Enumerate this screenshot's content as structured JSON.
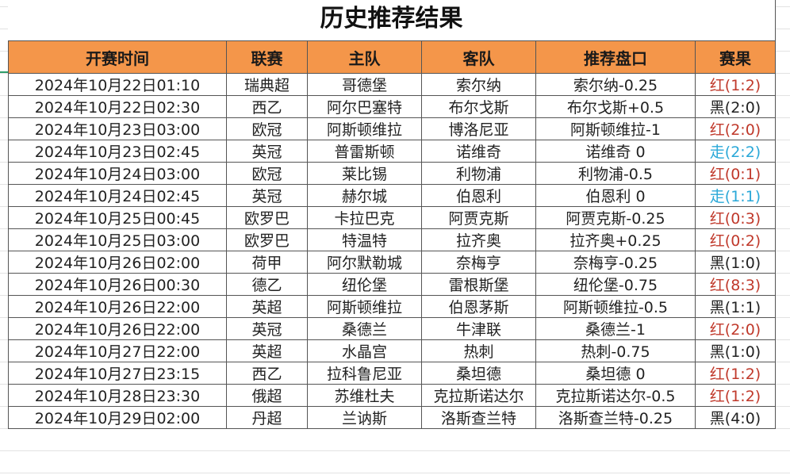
{
  "title": "历史推荐结果",
  "headers": [
    "开赛时间",
    "联赛",
    "主队",
    "客队",
    "推荐盘口",
    "赛果"
  ],
  "colors": {
    "header_bg": "#F4964A",
    "red": "#C0392B",
    "blue": "#2AA8D8",
    "black": "#222222"
  },
  "rows": [
    {
      "time": "2024年10月22日01:10",
      "league": "瑞典超",
      "home": "哥德堡",
      "away": "索尔纳",
      "pick": "索尔纳-0.25",
      "result": "红(1:2)",
      "color": "red"
    },
    {
      "time": "2024年10月22日02:30",
      "league": "西乙",
      "home": "阿尔巴塞特",
      "away": "布尔戈斯",
      "pick": "布尔戈斯+0.5",
      "result": "黑(2:0)",
      "color": "black"
    },
    {
      "time": "2024年10月23日03:00",
      "league": "欧冠",
      "home": "阿斯顿维拉",
      "away": "博洛尼亚",
      "pick": "阿斯顿维拉-1",
      "result": "红(2:0)",
      "color": "red"
    },
    {
      "time": "2024年10月23日02:45",
      "league": "英冠",
      "home": "普雷斯顿",
      "away": "诺维奇",
      "pick": "诺维奇 0",
      "result": "走(2:2)",
      "color": "blue"
    },
    {
      "time": "2024年10月24日03:00",
      "league": "欧冠",
      "home": "莱比锡",
      "away": "利物浦",
      "pick": "利物浦-0.5",
      "result": "红(0:1)",
      "color": "red"
    },
    {
      "time": "2024年10月24日02:45",
      "league": "英冠",
      "home": "赫尔城",
      "away": "伯恩利",
      "pick": "伯恩利 0",
      "result": "走(1:1)",
      "color": "blue"
    },
    {
      "time": "2024年10月25日00:45",
      "league": "欧罗巴",
      "home": "卡拉巴克",
      "away": "阿贾克斯",
      "pick": "阿贾克斯-0.25",
      "result": "红(0:3)",
      "color": "red"
    },
    {
      "time": "2024年10月25日03:00",
      "league": "欧罗巴",
      "home": "特温特",
      "away": "拉齐奥",
      "pick": "拉齐奥+0.25",
      "result": "红(0:2)",
      "color": "red"
    },
    {
      "time": "2024年10月26日02:00",
      "league": "荷甲",
      "home": "阿尔默勒城",
      "away": "奈梅亨",
      "pick": "奈梅亨-0.25",
      "result": "黑(1:0)",
      "color": "black"
    },
    {
      "time": "2024年10月26日00:30",
      "league": "德乙",
      "home": "纽伦堡",
      "away": "雷根斯堡",
      "pick": "纽伦堡-0.75",
      "result": "红(8:3)",
      "color": "red"
    },
    {
      "time": "2024年10月26日22:00",
      "league": "英超",
      "home": "阿斯顿维拉",
      "away": "伯恩茅斯",
      "pick": "阿斯顿维拉-0.5",
      "result": "黑(1:1)",
      "color": "black"
    },
    {
      "time": "2024年10月26日22:00",
      "league": "英冠",
      "home": "桑德兰",
      "away": "牛津联",
      "pick": "桑德兰-1",
      "result": "红(2:0)",
      "color": "red"
    },
    {
      "time": "2024年10月27日22:00",
      "league": "英超",
      "home": "水晶宫",
      "away": "热刺",
      "pick": "热刺-0.75",
      "result": "黑(1:0)",
      "color": "black"
    },
    {
      "time": "2024年10月27日23:15",
      "league": "西乙",
      "home": "拉科鲁尼亚",
      "away": "桑坦德",
      "pick": "桑坦德 0",
      "result": "红(1:2)",
      "color": "red"
    },
    {
      "time": "2024年10月28日23:30",
      "league": "俄超",
      "home": "苏维杜夫",
      "away": "克拉斯诺达尔",
      "pick": "克拉斯诺达尔-0.5",
      "result": "红(1:2)",
      "color": "red"
    },
    {
      "time": "2024年10月29日02:00",
      "league": "丹超",
      "home": "兰讷斯",
      "away": "洛斯查兰特",
      "pick": "洛斯查兰特-0.25",
      "result": "黑(4:0)",
      "color": "black"
    }
  ]
}
